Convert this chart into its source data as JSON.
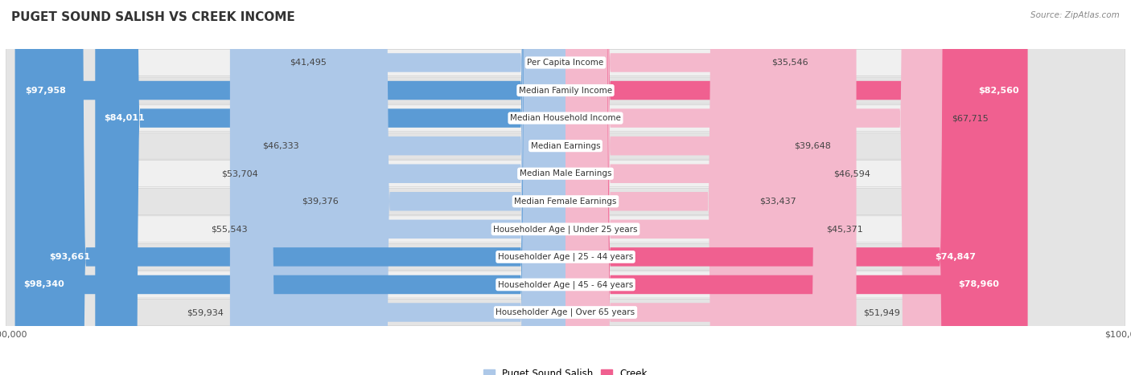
{
  "title": "PUGET SOUND SALISH VS CREEK INCOME",
  "source": "Source: ZipAtlas.com",
  "categories": [
    "Per Capita Income",
    "Median Family Income",
    "Median Household Income",
    "Median Earnings",
    "Median Male Earnings",
    "Median Female Earnings",
    "Householder Age | Under 25 years",
    "Householder Age | 25 - 44 years",
    "Householder Age | 45 - 64 years",
    "Householder Age | Over 65 years"
  ],
  "salish_values": [
    41495,
    97958,
    84011,
    46333,
    53704,
    39376,
    55543,
    93661,
    98340,
    59934
  ],
  "creek_values": [
    35546,
    82560,
    67715,
    39648,
    46594,
    33437,
    45371,
    74847,
    78960,
    51949
  ],
  "salish_labels": [
    "$41,495",
    "$97,958",
    "$84,011",
    "$46,333",
    "$53,704",
    "$39,376",
    "$55,543",
    "$93,661",
    "$98,340",
    "$59,934"
  ],
  "creek_labels": [
    "$35,546",
    "$82,560",
    "$67,715",
    "$39,648",
    "$46,594",
    "$33,437",
    "$45,371",
    "$74,847",
    "$78,960",
    "$51,949"
  ],
  "salish_color_light": "#adc8e8",
  "salish_color_dark": "#5b9bd5",
  "creek_color_light": "#f4b8cc",
  "creek_color_dark": "#f06090",
  "salish_text_threshold": 70000,
  "creek_text_threshold": 70000,
  "max_value": 100000,
  "legend_salish": "Puget Sound Salish",
  "legend_creek": "Creek",
  "title_fontsize": 11,
  "label_fontsize": 8,
  "category_fontsize": 7.5
}
